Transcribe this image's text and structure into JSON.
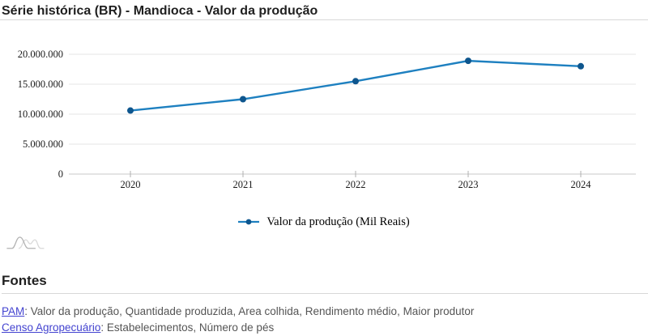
{
  "header": {
    "title": "Série histórica (BR) - Mandioca - Valor da produção"
  },
  "chart_data": {
    "type": "line",
    "title": "",
    "xlabel": "",
    "ylabel": "",
    "categories": [
      "2020",
      "2021",
      "2022",
      "2023",
      "2024"
    ],
    "series": [
      {
        "name": "Valor da produção (Mil Reais)",
        "values": [
          10600000,
          12500000,
          15500000,
          18900000,
          18000000
        ]
      }
    ],
    "ylim": [
      0,
      20000000
    ],
    "ytick_step": 5000000,
    "ytick_labels": [
      "0",
      "5.000.000",
      "10.000.000",
      "15.000.000",
      "20.000.000"
    ],
    "grid": true,
    "legend_position": "bottom",
    "colors": {
      "line": "#1e80c0",
      "marker": "#0e568e",
      "grid": "#e6e6e6",
      "axis": "#c9c9c9",
      "tick": "#b0b0b0",
      "tick_label": "#1a1a1a"
    }
  },
  "legend": {
    "label": "Valor da produção (Mil Reais)"
  },
  "watermark": {
    "name": "amcharts-logo"
  },
  "fontes": {
    "heading": "Fontes",
    "link_color": "#4343d0",
    "sources": [
      {
        "link": "PAM",
        "description": ": Valor da produção, Quantidade produzida, Area colhida, Rendimento médio, Maior produtor"
      },
      {
        "link": "Censo Agropecuário",
        "description": ": Estabelecimentos, Número de pés"
      }
    ]
  }
}
